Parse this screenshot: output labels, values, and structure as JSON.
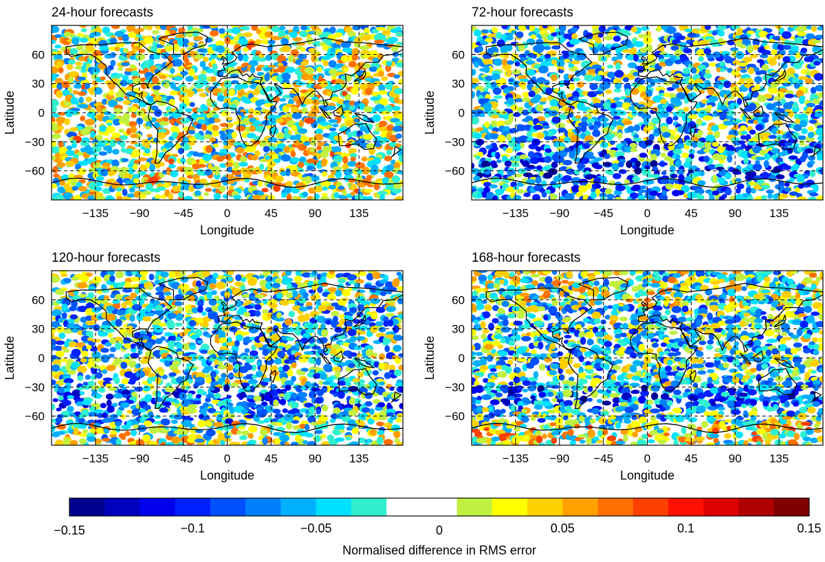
{
  "figure": {
    "colorbar": {
      "label": "Normalised difference in RMS error",
      "range": [
        -0.15,
        0.15
      ],
      "ticks": [
        "−0.15",
        "−0.1",
        "−0.05",
        "0",
        "0.05",
        "0.1",
        "0.15"
      ],
      "colors": [
        "#00008f",
        "#0000bf",
        "#0000ef",
        "#0020ff",
        "#0050ff",
        "#0080ff",
        "#00b0ff",
        "#00e0ff",
        "#30f0d0",
        "#ffffff",
        "#ffffff",
        "#c0f040",
        "#ffff00",
        "#ffd000",
        "#ffa000",
        "#ff7000",
        "#ff4000",
        "#ff1000",
        "#df0000",
        "#af0000",
        "#800000"
      ]
    }
  },
  "chart_data": [
    {
      "type": "heatmap",
      "title": "24-hour forecasts",
      "xlabel": "Longitude",
      "ylabel": "Latitude",
      "xlim": [
        -180,
        180
      ],
      "ylim": [
        -90,
        90
      ],
      "xticks": [
        "−135",
        "−90",
        "−45",
        "0",
        "45",
        "90",
        "135"
      ],
      "yticks": [
        "60",
        "30",
        "0",
        "−30",
        "−60"
      ],
      "grid": true,
      "field": "mixed small-scale red/blue noise, near-neutral overall"
    },
    {
      "type": "heatmap",
      "title": "72-hour forecasts",
      "xlabel": "Longitude",
      "ylabel": "Latitude",
      "xlim": [
        -180,
        180
      ],
      "ylim": [
        -90,
        90
      ],
      "xticks": [
        "−135",
        "−90",
        "−45",
        "0",
        "45",
        "90",
        "135"
      ],
      "yticks": [
        "60",
        "30",
        "0",
        "−30",
        "−60"
      ],
      "grid": true,
      "field": "predominantly negative (blue), strongest over Southern Ocean"
    },
    {
      "type": "heatmap",
      "title": "120-hour forecasts",
      "xlabel": "Longitude",
      "ylabel": "Latitude",
      "xlim": [
        -180,
        180
      ],
      "ylim": [
        -90,
        90
      ],
      "xticks": [
        "−135",
        "−90",
        "−45",
        "0",
        "45",
        "90",
        "135"
      ],
      "yticks": [
        "60",
        "30",
        "0",
        "−30",
        "−60"
      ],
      "grid": true,
      "field": "predominantly negative (blue) with positive patches near Antarctica"
    },
    {
      "type": "heatmap",
      "title": "168-hour forecasts",
      "xlabel": "Longitude",
      "ylabel": "Latitude",
      "xlim": [
        -180,
        180
      ],
      "ylim": [
        -90,
        90
      ],
      "xticks": [
        "−135",
        "−90",
        "−45",
        "0",
        "45",
        "90",
        "135"
      ],
      "yticks": [
        "60",
        "30",
        "0",
        "−30",
        "−60"
      ],
      "grid": true,
      "field": "strong negative (dark blue) areas in high latitudes, red spots near Antarctica"
    }
  ]
}
